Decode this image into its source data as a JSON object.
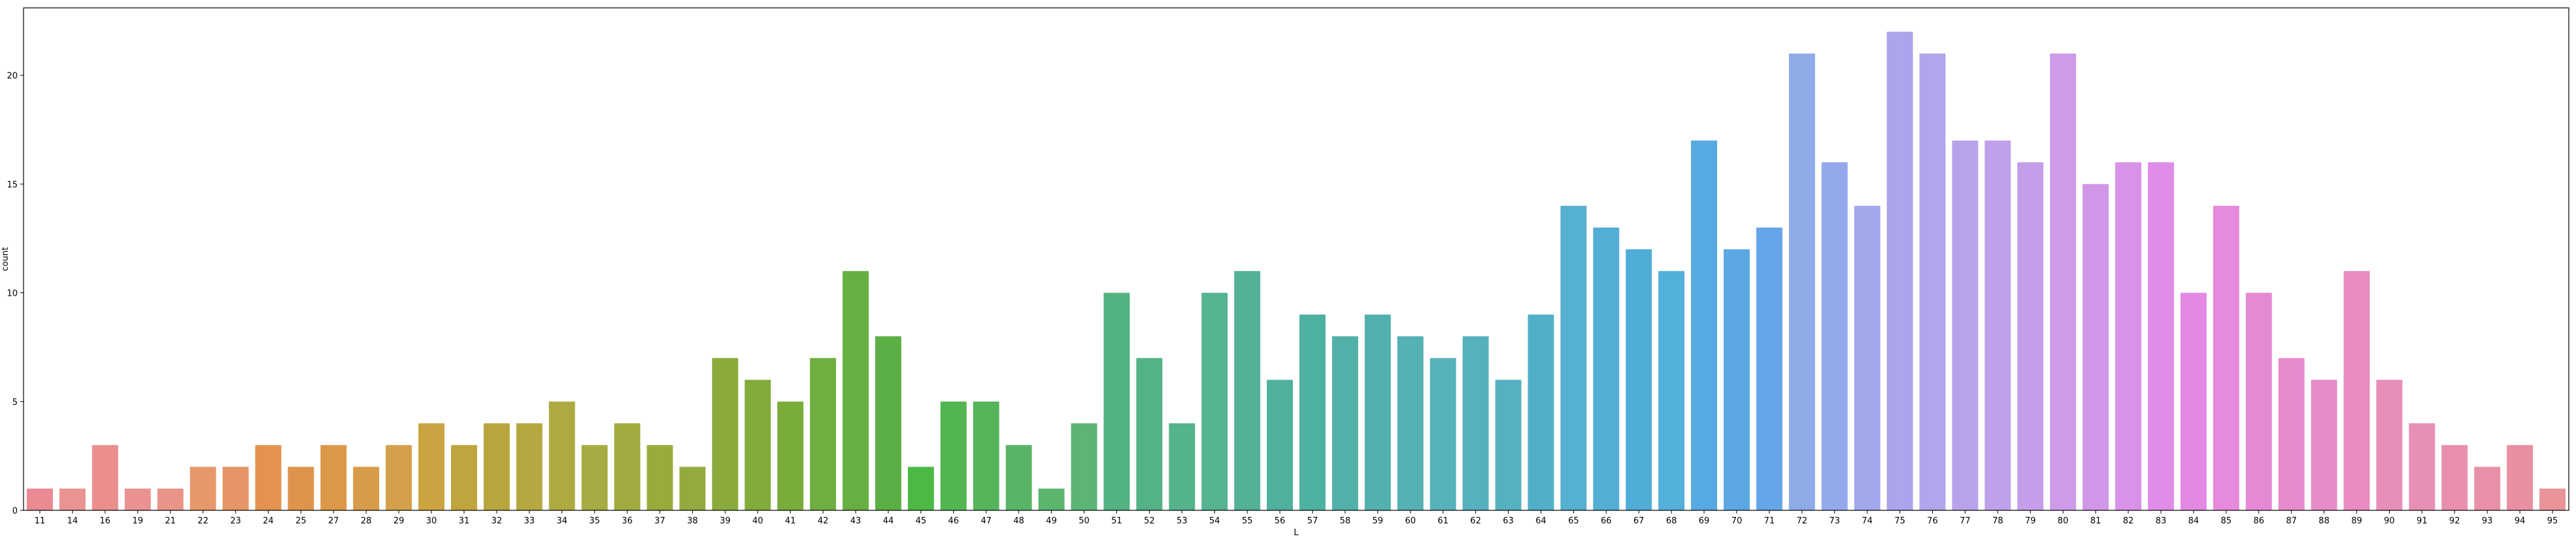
{
  "chart_data": {
    "type": "bar",
    "xlabel": "L",
    "ylabel": "count",
    "ylim": [
      0,
      23.1
    ],
    "yticks": [
      0,
      5,
      10,
      15,
      20
    ],
    "grid": false,
    "categories": [
      "11",
      "14",
      "16",
      "19",
      "21",
      "22",
      "23",
      "24",
      "25",
      "27",
      "28",
      "29",
      "30",
      "31",
      "32",
      "33",
      "34",
      "35",
      "36",
      "37",
      "38",
      "39",
      "40",
      "41",
      "42",
      "43",
      "44",
      "45",
      "46",
      "47",
      "48",
      "49",
      "50",
      "51",
      "52",
      "53",
      "54",
      "55",
      "56",
      "57",
      "58",
      "59",
      "60",
      "61",
      "62",
      "63",
      "64",
      "65",
      "66",
      "67",
      "68",
      "69",
      "70",
      "71",
      "72",
      "73",
      "74",
      "75",
      "76",
      "77",
      "78",
      "79",
      "80",
      "81",
      "82",
      "83",
      "84",
      "85",
      "86",
      "87",
      "88",
      "89",
      "90",
      "91",
      "92",
      "93",
      "94",
      "95"
    ],
    "values": [
      1,
      1,
      3,
      1,
      1,
      2,
      2,
      3,
      2,
      3,
      2,
      3,
      4,
      3,
      4,
      4,
      5,
      3,
      4,
      3,
      2,
      7,
      6,
      5,
      7,
      11,
      8,
      2,
      5,
      5,
      3,
      1,
      4,
      10,
      7,
      4,
      10,
      11,
      6,
      9,
      8,
      9,
      8,
      7,
      8,
      6,
      9,
      14,
      13,
      12,
      11,
      17,
      12,
      13,
      21,
      16,
      14,
      22,
      21,
      17,
      17,
      16,
      21,
      15,
      16,
      16,
      10,
      14,
      10,
      7,
      6,
      11,
      6,
      4,
      3,
      2,
      3,
      1
    ],
    "colors": [
      "#ea8a93",
      "#e99392",
      "#ea8e8e",
      "#ea9292",
      "#e99488",
      "#e6986a",
      "#e59566",
      "#e3924f",
      "#de944d",
      "#dc9748",
      "#d79c49",
      "#d4a04c",
      "#cba341",
      "#c0a53f",
      "#baa63f",
      "#b6a840",
      "#aeaa42",
      "#a8ab41",
      "#a2ab3f",
      "#9aab3c",
      "#93ab3e",
      "#8aab3b",
      "#82ab3b",
      "#79ac39",
      "#6fae40",
      "#67af42",
      "#5caf44",
      "#4db944",
      "#52b650",
      "#56b55a",
      "#58b567",
      "#5cb56d",
      "#5db575",
      "#52b281",
      "#53b384",
      "#54b38a",
      "#55b390",
      "#52b197",
      "#4fb09e",
      "#4fb1a2",
      "#51b1a8",
      "#52b1ae",
      "#55b1b3",
      "#56b2ba",
      "#56b1be",
      "#55b1c1",
      "#51b0c8",
      "#56b0cf",
      "#52aed4",
      "#4fadd8",
      "#53b0da",
      "#56a9e1",
      "#5ba8e2",
      "#64a6e7",
      "#8eaae7",
      "#94a9ec",
      "#a1a8ec",
      "#aaa5ec",
      "#b1a5eb",
      "#b8a3ea",
      "#bea1ea",
      "#c59ee9",
      "#cd9be8",
      "#d296e9",
      "#d893e8",
      "#de8ee8",
      "#e389e4",
      "#e58adc",
      "#e689d5",
      "#e78bcf",
      "#e88bc9",
      "#e88cc2",
      "#e88ebb",
      "#e88fb5",
      "#e88fad",
      "#e890a7",
      "#e890a2",
      "#e89498"
    ]
  }
}
